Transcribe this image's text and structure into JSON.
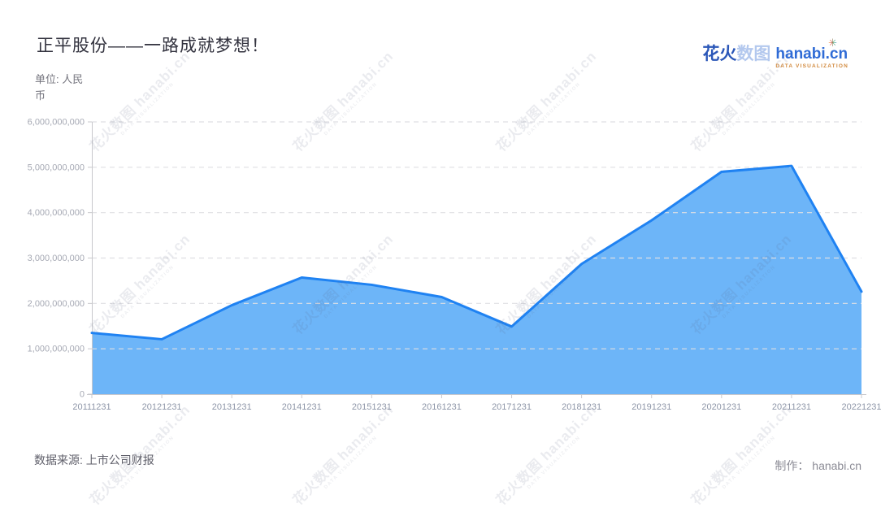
{
  "header": {
    "title": "正平股份——一路成就梦想！",
    "unit_label": "单位: 人民币"
  },
  "logo": {
    "brand_cn_bold": "花火",
    "brand_cn_light": "数图",
    "brand_en": "hanabi.cn",
    "tagline": "DATA VISUALIZATION",
    "spark_icon": "sparkle"
  },
  "footer": {
    "source": "数据来源: 上市公司财报",
    "credit": "制作： hanabi.cn"
  },
  "watermark": {
    "main": "花火数图 hanabi.cn",
    "sub": "DATA VISUALIZATION"
  },
  "colors": {
    "line": "#1f82f2",
    "fill": "#6db5f8",
    "grid": "#dfdfe3",
    "axis": "#c8c8cc",
    "y_tick_label": "#a6a9b4",
    "x_tick_label": "#8e96a8",
    "title": "#32323e"
  },
  "chart_data": {
    "type": "area",
    "title": "正平股份——一路成就梦想！",
    "unit": "人民币",
    "x": [
      "20111231",
      "20121231",
      "20131231",
      "20141231",
      "20151231",
      "20161231",
      "20171231",
      "20181231",
      "20191231",
      "20201231",
      "20211231",
      "20221231"
    ],
    "values": [
      1350000000,
      1210000000,
      1960000000,
      2570000000,
      2410000000,
      2140000000,
      1490000000,
      2870000000,
      3830000000,
      4900000000,
      5030000000,
      2260000000
    ],
    "ylim": [
      0,
      6000000000
    ],
    "ytick_step": 1000000000,
    "ytick_labels": [
      "0",
      "1,000,000,000",
      "2,000,000,000",
      "3,000,000,000",
      "4,000,000,000",
      "5,000,000,000",
      "6,000,000,000"
    ],
    "grid": "horizontal-dashed",
    "legend": "none"
  }
}
